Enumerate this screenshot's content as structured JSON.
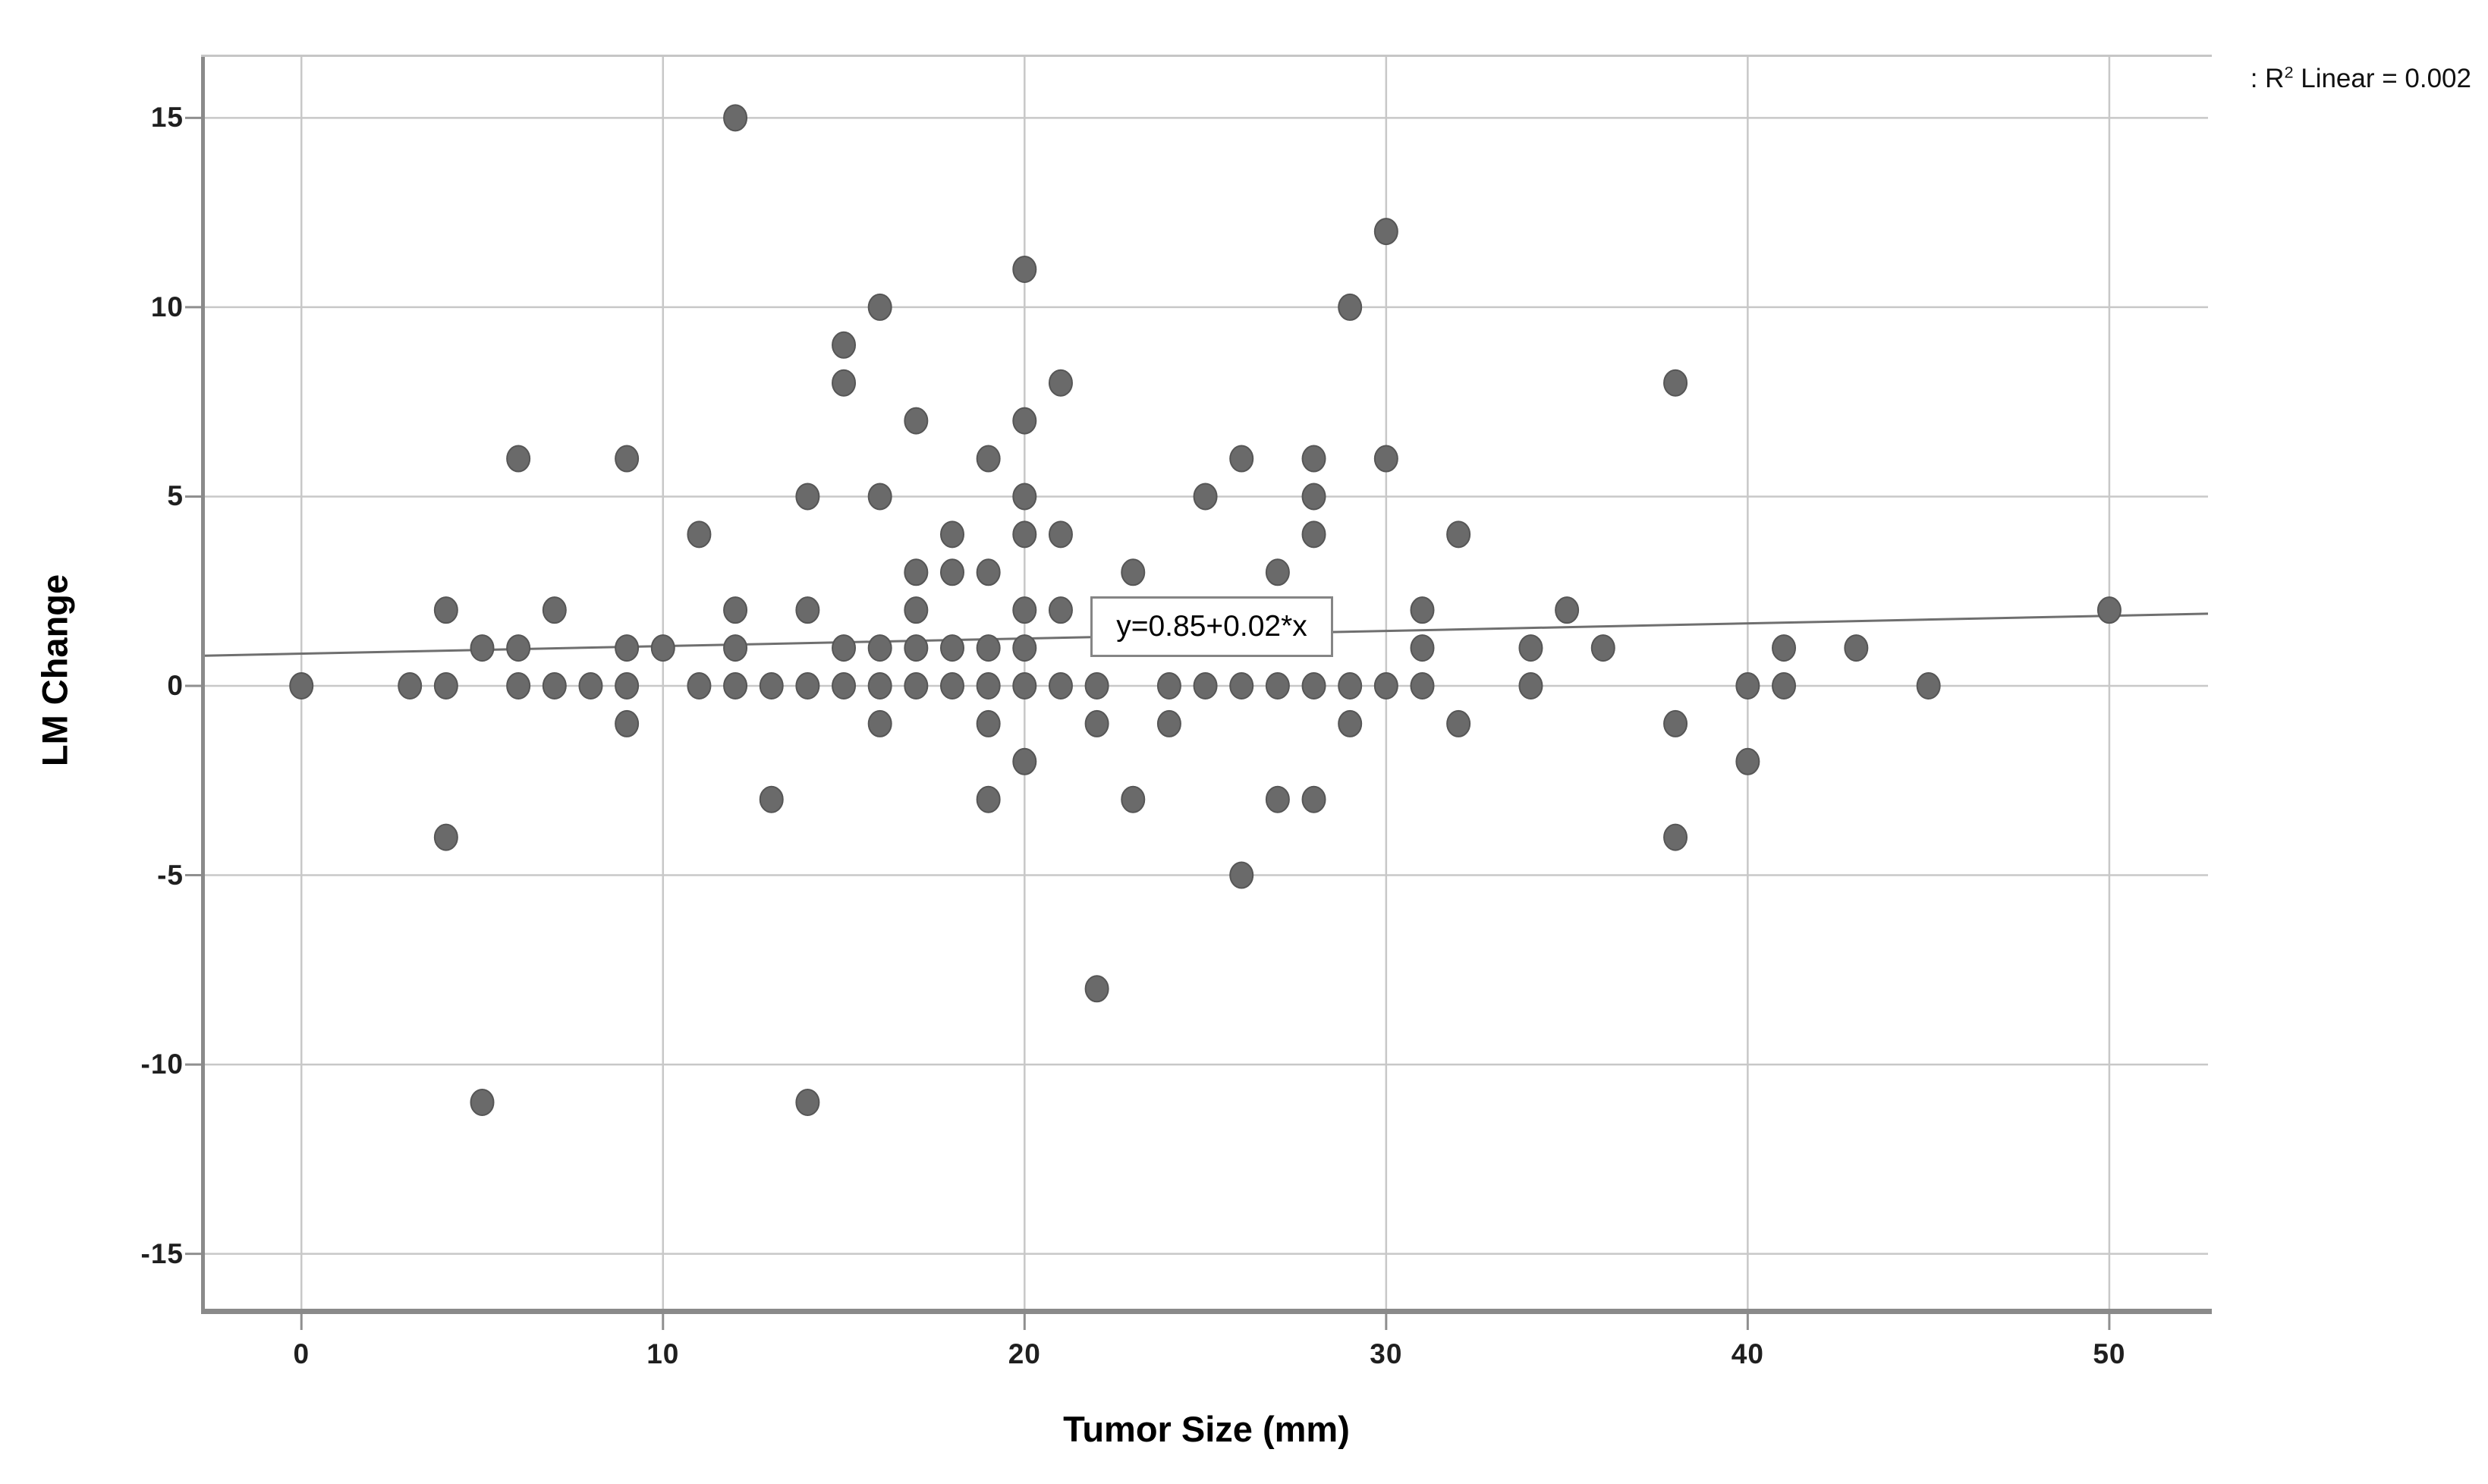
{
  "chart_data": {
    "type": "scatter",
    "title": "",
    "xlabel": "Tumor Size (mm)",
    "ylabel": "LM Change",
    "xlim": [
      -2.67,
      52.73
    ],
    "ylim": [
      -16.45,
      16.61
    ],
    "x_ticks": [
      "0",
      "10",
      "20",
      "30",
      "40",
      "50"
    ],
    "x_tick_values": [
      0,
      10,
      20,
      30,
      40,
      50
    ],
    "y_ticks": [
      "15",
      "10",
      "5",
      "0",
      "-5",
      "-10",
      "-15"
    ],
    "y_tick_values": [
      15,
      10,
      5,
      0,
      -5,
      -10,
      -15
    ],
    "grid": true,
    "legend_position": "none",
    "regression": {
      "label": "y=0.85+0.02*x",
      "intercept": 0.85,
      "slope": 0.02
    },
    "annotation": {
      "prefix": ": R",
      "sup": "2",
      "suffix": " Linear = 0.002"
    },
    "points": [
      [
        12,
        15
      ],
      [
        30,
        12
      ],
      [
        20,
        11
      ],
      [
        16,
        10
      ],
      [
        29,
        10
      ],
      [
        15,
        9
      ],
      [
        15,
        8
      ],
      [
        21,
        8
      ],
      [
        38,
        8
      ],
      [
        17,
        7
      ],
      [
        20,
        7
      ],
      [
        6,
        6
      ],
      [
        9,
        6
      ],
      [
        19,
        6
      ],
      [
        26,
        6
      ],
      [
        28,
        6
      ],
      [
        30,
        6
      ],
      [
        14,
        5
      ],
      [
        16,
        5
      ],
      [
        20,
        5
      ],
      [
        25,
        5
      ],
      [
        28,
        5
      ],
      [
        11,
        4
      ],
      [
        18,
        4
      ],
      [
        20,
        4
      ],
      [
        21,
        4
      ],
      [
        28,
        4
      ],
      [
        32,
        4
      ],
      [
        17,
        3
      ],
      [
        18,
        3
      ],
      [
        19,
        3
      ],
      [
        23,
        3
      ],
      [
        27,
        3
      ],
      [
        4,
        2
      ],
      [
        7,
        2
      ],
      [
        12,
        2
      ],
      [
        14,
        2
      ],
      [
        17,
        2
      ],
      [
        20,
        2
      ],
      [
        21,
        2
      ],
      [
        24,
        2
      ],
      [
        25,
        2
      ],
      [
        27,
        2
      ],
      [
        28,
        2
      ],
      [
        31,
        2
      ],
      [
        35,
        2
      ],
      [
        50,
        2
      ],
      [
        5,
        1
      ],
      [
        6,
        1
      ],
      [
        9,
        1
      ],
      [
        10,
        1
      ],
      [
        12,
        1
      ],
      [
        15,
        1
      ],
      [
        16,
        1
      ],
      [
        17,
        1
      ],
      [
        18,
        1
      ],
      [
        19,
        1
      ],
      [
        20,
        1
      ],
      [
        31,
        1
      ],
      [
        34,
        1
      ],
      [
        36,
        1
      ],
      [
        41,
        1
      ],
      [
        43,
        1
      ],
      [
        0,
        0
      ],
      [
        3,
        0
      ],
      [
        4,
        0
      ],
      [
        6,
        0
      ],
      [
        7,
        0
      ],
      [
        8,
        0
      ],
      [
        9,
        0
      ],
      [
        11,
        0
      ],
      [
        12,
        0
      ],
      [
        13,
        0
      ],
      [
        14,
        0
      ],
      [
        15,
        0
      ],
      [
        16,
        0
      ],
      [
        17,
        0
      ],
      [
        18,
        0
      ],
      [
        19,
        0
      ],
      [
        20,
        0
      ],
      [
        21,
        0
      ],
      [
        22,
        0
      ],
      [
        24,
        0
      ],
      [
        25,
        0
      ],
      [
        26,
        0
      ],
      [
        27,
        0
      ],
      [
        28,
        0
      ],
      [
        29,
        0
      ],
      [
        30,
        0
      ],
      [
        31,
        0
      ],
      [
        34,
        0
      ],
      [
        40,
        0
      ],
      [
        41,
        0
      ],
      [
        45,
        0
      ],
      [
        9,
        -1
      ],
      [
        16,
        -1
      ],
      [
        19,
        -1
      ],
      [
        22,
        -1
      ],
      [
        24,
        -1
      ],
      [
        29,
        -1
      ],
      [
        32,
        -1
      ],
      [
        38,
        -1
      ],
      [
        20,
        -2
      ],
      [
        40,
        -2
      ],
      [
        13,
        -3
      ],
      [
        19,
        -3
      ],
      [
        23,
        -3
      ],
      [
        27,
        -3
      ],
      [
        28,
        -3
      ],
      [
        4,
        -4
      ],
      [
        38,
        -4
      ],
      [
        26,
        -5
      ],
      [
        22,
        -8
      ],
      [
        5,
        -11
      ],
      [
        14,
        -11
      ]
    ]
  },
  "colors": {
    "background": "#ffffff",
    "point_fill": "#6a6a6a",
    "point_stroke": "#565656",
    "gridline": "#c8c8c8",
    "frame_dark": "#8a8a8a",
    "frame_light": "#c6c6c6",
    "tick": "#8f8f8f",
    "regression_line": "#6f6f6f",
    "text": "#1f1f1f"
  }
}
